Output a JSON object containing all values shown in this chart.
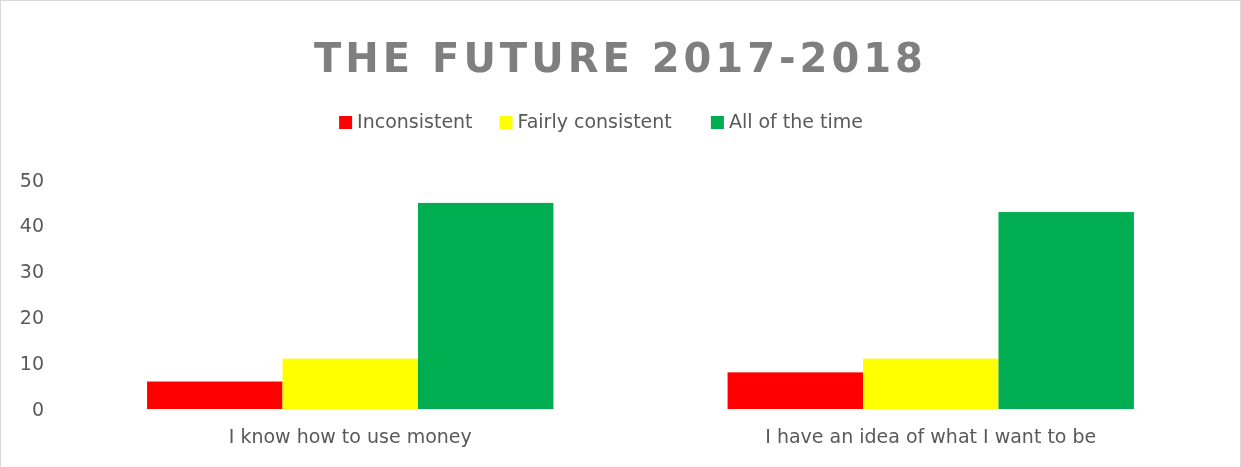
{
  "chart_data": {
    "type": "bar",
    "title": "THE FUTURE 2017-2018",
    "categories": [
      "I know how to use money",
      "I have an idea of what I want to be"
    ],
    "series": [
      {
        "name": "Inconsistent",
        "color": "#ff0000",
        "values": [
          6,
          8
        ]
      },
      {
        "name": "Fairly consistent",
        "color": "#ffff00",
        "values": [
          11,
          11
        ]
      },
      {
        "name": "All of the time",
        "color": "#00ad50",
        "values": [
          45,
          43
        ]
      }
    ],
    "ylim": [
      0,
      50
    ],
    "yticks": [
      0,
      10,
      20,
      30,
      40,
      50
    ],
    "grid": false,
    "legend": "top"
  }
}
